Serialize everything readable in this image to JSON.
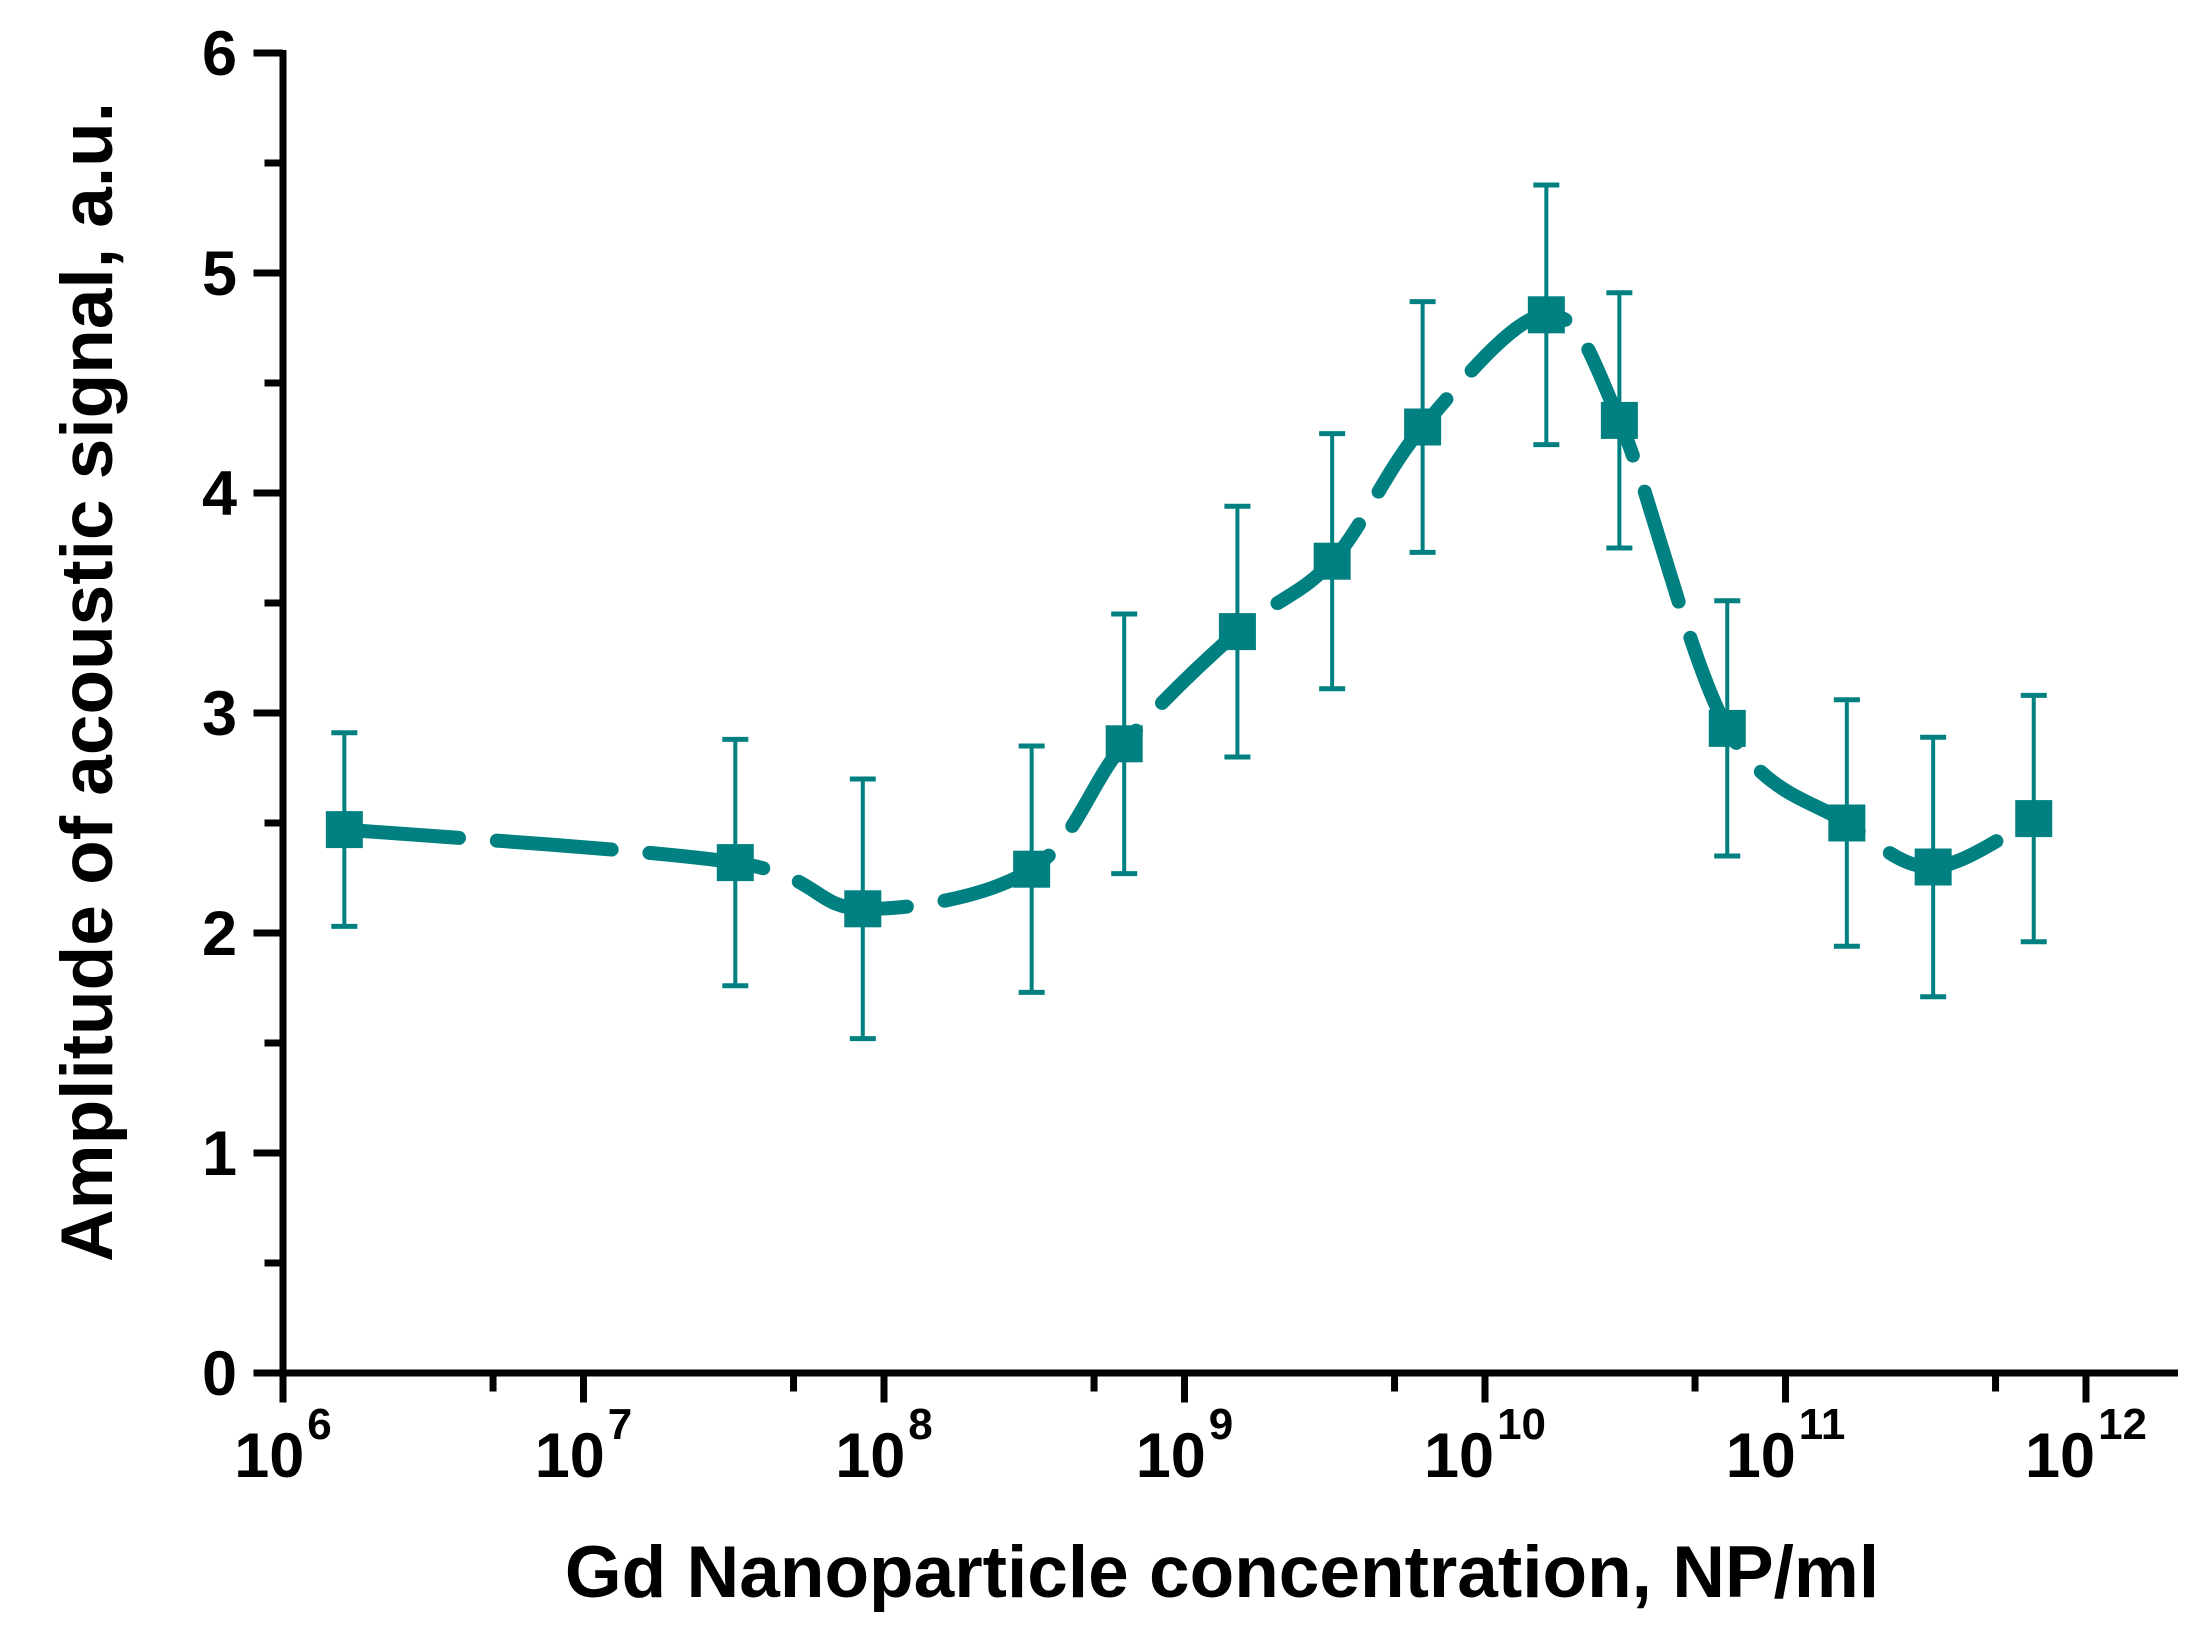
{
  "chart_data": {
    "type": "scatter",
    "title": "",
    "xlabel": "Gd Nanoparticle concentration, NP/ml",
    "ylabel": "Amplitude of acoustic signal, a.u.",
    "x_scale": "log",
    "y_scale": "linear",
    "xlim_log10": [
      6,
      12.31
    ],
    "ylim": [
      0,
      6
    ],
    "grid": false,
    "legend": false,
    "y_ticks": [
      0,
      1,
      2,
      3,
      4,
      5,
      6
    ],
    "y_minor_step": 0.5,
    "x_tick_base": "10",
    "x_tick_exponents": [
      6,
      7,
      8,
      9,
      10,
      11,
      12
    ],
    "x_minor_log_offset": 0.69897,
    "series": [
      {
        "name": "Amplitude of acoustic signal",
        "marker": "square",
        "line_style": "dashed-spline",
        "color": "#008080",
        "x": [
          1600000.0,
          32000000.0,
          85000000.0,
          310000000.0,
          630000000.0,
          1500000000.0,
          3100000000.0,
          6200000000.0,
          16000000000.0,
          28000000000.0,
          64000000000.0,
          160000000000.0,
          310000000000.0,
          670000000000.0
        ],
        "y": [
          2.47,
          2.32,
          2.11,
          2.29,
          2.86,
          3.37,
          3.69,
          4.3,
          4.81,
          4.33,
          2.93,
          2.5,
          2.3,
          2.52
        ],
        "y_err": [
          0.44,
          0.56,
          0.59,
          0.56,
          0.59,
          0.57,
          0.58,
          0.57,
          0.59,
          0.58,
          0.58,
          0.56,
          0.59,
          0.56
        ]
      }
    ]
  },
  "colors": {
    "axis": "#000000",
    "series": "#008080",
    "background": "#ffffff"
  }
}
